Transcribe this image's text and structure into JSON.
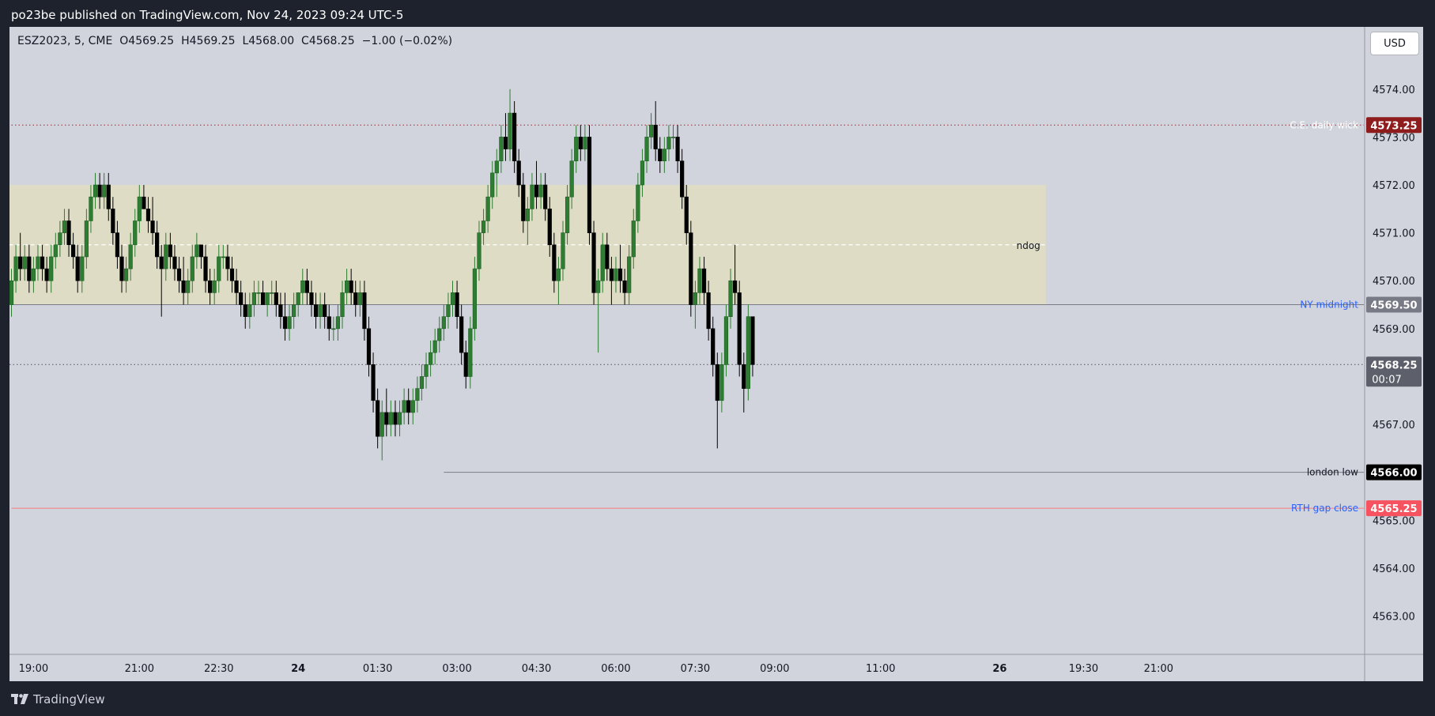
{
  "header": {
    "publish_line": "po23be published on TradingView.com, Nov 24, 2023 09:24 UTC-5"
  },
  "legend": {
    "symbol": "ESZ2023, 5, CME",
    "open": "O4569.25",
    "high": "H4569.25",
    "low": "L4568.00",
    "close": "C4568.25",
    "change": "−1.00 (−0.02%)"
  },
  "currency_button": "USD",
  "footer": {
    "brand": "TradingView"
  },
  "colors": {
    "up": "#26a69a",
    "up_fill": "#2e7d32",
    "down": "#000000",
    "zone": "#dedcc5",
    "background": "#d1d4dc"
  },
  "chart_data": {
    "type": "candlestick",
    "symbol": "ESZ2023",
    "interval": "5",
    "exchange": "CME",
    "ylim": [
      4562.2,
      4575.3
    ],
    "y_ticks": [
      4563,
      4564,
      4565,
      4566,
      4567,
      4568,
      4569,
      4570,
      4571,
      4572,
      4573,
      4574,
      4575
    ],
    "y_tick_labels": [
      "4563.00",
      "4564.00",
      "4565.00",
      "4566.00",
      "4567.00",
      "4568.00",
      "4569.00",
      "4570.00",
      "4571.00",
      "4572.00",
      "4573.00",
      "4574.00",
      "4575.00"
    ],
    "x_ticks": [
      {
        "label": "19:00",
        "bar": 5,
        "bold": false
      },
      {
        "label": "21:00",
        "bar": 29,
        "bold": false
      },
      {
        "label": "22:30",
        "bar": 47,
        "bold": false
      },
      {
        "label": "24",
        "bar": 65,
        "bold": true
      },
      {
        "label": "01:30",
        "bar": 83,
        "bold": false
      },
      {
        "label": "03:00",
        "bar": 101,
        "bold": false
      },
      {
        "label": "04:30",
        "bar": 119,
        "bold": false
      },
      {
        "label": "06:00",
        "bar": 137,
        "bold": false
      },
      {
        "label": "07:30",
        "bar": 155,
        "bold": false
      },
      {
        "label": "09:00",
        "bar": 173,
        "bold": false
      },
      {
        "label": "11:00",
        "bar": 197,
        "bold": false
      },
      {
        "label": "26",
        "bar": 224,
        "bold": true
      },
      {
        "label": "19:30",
        "bar": 243,
        "bold": false
      },
      {
        "label": "21:00",
        "bar": 260,
        "bold": false
      }
    ],
    "bars_visible": 275,
    "candles": [
      [
        4569.5,
        4570.25,
        4569.25,
        4570.0
      ],
      [
        4570.0,
        4570.75,
        4569.75,
        4570.5
      ],
      [
        4570.5,
        4571.0,
        4570.0,
        4570.25
      ],
      [
        4570.25,
        4570.75,
        4570.0,
        4570.5
      ],
      [
        4570.5,
        4570.75,
        4569.75,
        4570.0
      ],
      [
        4570.0,
        4570.5,
        4569.75,
        4570.25
      ],
      [
        4570.25,
        4570.75,
        4570.0,
        4570.5
      ],
      [
        4570.5,
        4570.75,
        4570.0,
        4570.25
      ],
      [
        4570.25,
        4570.5,
        4569.75,
        4570.0
      ],
      [
        4570.0,
        4570.75,
        4569.75,
        4570.5
      ],
      [
        4570.5,
        4571.0,
        4570.25,
        4570.75
      ],
      [
        4570.75,
        4571.25,
        4570.5,
        4571.0
      ],
      [
        4571.0,
        4571.5,
        4570.75,
        4571.25
      ],
      [
        4571.25,
        4571.5,
        4570.5,
        4570.75
      ],
      [
        4570.75,
        4571.0,
        4570.25,
        4570.5
      ],
      [
        4570.5,
        4570.75,
        4569.75,
        4570.0
      ],
      [
        4570.0,
        4570.75,
        4569.75,
        4570.5
      ],
      [
        4570.5,
        4571.5,
        4570.25,
        4571.25
      ],
      [
        4571.25,
        4572.0,
        4571.0,
        4571.75
      ],
      [
        4571.75,
        4572.25,
        4571.5,
        4572.0
      ],
      [
        4572.0,
        4572.25,
        4571.5,
        4571.75
      ],
      [
        4571.75,
        4572.25,
        4571.5,
        4572.0
      ],
      [
        4572.0,
        4572.25,
        4571.25,
        4571.5
      ],
      [
        4571.5,
        4571.75,
        4570.75,
        4571.0
      ],
      [
        4571.0,
        4571.25,
        4570.25,
        4570.5
      ],
      [
        4570.5,
        4570.75,
        4569.75,
        4570.0
      ],
      [
        4570.0,
        4570.5,
        4569.75,
        4570.25
      ],
      [
        4570.25,
        4571.0,
        4570.0,
        4570.75
      ],
      [
        4570.75,
        4571.5,
        4570.5,
        4571.25
      ],
      [
        4571.25,
        4572.0,
        4571.0,
        4571.75
      ],
      [
        4571.75,
        4572.0,
        4571.5,
        4571.5
      ],
      [
        4571.5,
        4571.75,
        4571.0,
        4571.25
      ],
      [
        4571.25,
        4571.75,
        4570.75,
        4571.0
      ],
      [
        4571.0,
        4571.25,
        4570.25,
        4570.5
      ],
      [
        4570.5,
        4570.75,
        4569.25,
        4570.25
      ],
      [
        4570.25,
        4571.0,
        4570.0,
        4570.75
      ],
      [
        4570.75,
        4571.0,
        4570.25,
        4570.5
      ],
      [
        4570.5,
        4570.75,
        4570.0,
        4570.25
      ],
      [
        4570.25,
        4570.5,
        4569.75,
        4570.0
      ],
      [
        4570.0,
        4570.5,
        4569.5,
        4569.75
      ],
      [
        4569.75,
        4570.25,
        4569.5,
        4570.0
      ],
      [
        4570.0,
        4570.75,
        4569.75,
        4570.5
      ],
      [
        4570.5,
        4571.0,
        4570.25,
        4570.75
      ],
      [
        4570.75,
        4570.75,
        4570.25,
        4570.5
      ],
      [
        4570.5,
        4570.75,
        4569.75,
        4570.0
      ],
      [
        4570.0,
        4570.25,
        4569.5,
        4569.75
      ],
      [
        4569.75,
        4570.25,
        4569.5,
        4570.0
      ],
      [
        4570.0,
        4570.75,
        4569.75,
        4570.5
      ],
      [
        4570.5,
        4570.75,
        4570.25,
        4570.5
      ],
      [
        4570.5,
        4570.75,
        4570.0,
        4570.25
      ],
      [
        4570.25,
        4570.5,
        4569.75,
        4570.0
      ],
      [
        4570.0,
        4570.25,
        4569.5,
        4569.75
      ],
      [
        4569.75,
        4570.0,
        4569.25,
        4569.5
      ],
      [
        4569.5,
        4569.75,
        4569.0,
        4569.25
      ],
      [
        4569.25,
        4569.75,
        4569.0,
        4569.5
      ],
      [
        4569.5,
        4570.0,
        4569.25,
        4569.75
      ],
      [
        4569.75,
        4570.0,
        4569.5,
        4569.75
      ],
      [
        4569.75,
        4570.0,
        4569.5,
        4569.5
      ],
      [
        4569.5,
        4569.75,
        4569.25,
        4569.75
      ],
      [
        4569.75,
        4570.0,
        4569.5,
        4569.75
      ],
      [
        4569.75,
        4570.0,
        4569.25,
        4569.5
      ],
      [
        4569.5,
        4569.75,
        4569.0,
        4569.25
      ],
      [
        4569.25,
        4569.75,
        4568.75,
        4569.0
      ],
      [
        4569.0,
        4569.5,
        4568.75,
        4569.25
      ],
      [
        4569.25,
        4569.75,
        4569.0,
        4569.5
      ],
      [
        4569.5,
        4569.75,
        4569.25,
        4569.75
      ],
      [
        4569.75,
        4570.25,
        4569.5,
        4570.0
      ],
      [
        4570.0,
        4570.25,
        4569.5,
        4569.75
      ],
      [
        4569.75,
        4570.0,
        4569.25,
        4569.5
      ],
      [
        4569.5,
        4569.75,
        4569.0,
        4569.25
      ],
      [
        4569.25,
        4569.75,
        4569.0,
        4569.5
      ],
      [
        4569.5,
        4569.75,
        4569.0,
        4569.25
      ],
      [
        4569.25,
        4569.5,
        4568.75,
        4569.0
      ],
      [
        4569.0,
        4569.25,
        4568.75,
        4569.0
      ],
      [
        4569.0,
        4569.5,
        4568.75,
        4569.25
      ],
      [
        4569.25,
        4570.0,
        4569.0,
        4569.75
      ],
      [
        4569.75,
        4570.25,
        4569.5,
        4570.0
      ],
      [
        4570.0,
        4570.25,
        4569.5,
        4569.75
      ],
      [
        4569.75,
        4570.0,
        4569.25,
        4569.5
      ],
      [
        4569.5,
        4570.0,
        4569.25,
        4569.75
      ],
      [
        4569.75,
        4570.0,
        4568.75,
        4569.0
      ],
      [
        4569.0,
        4569.25,
        4568.0,
        4568.25
      ],
      [
        4568.25,
        4568.5,
        4567.25,
        4567.5
      ],
      [
        4567.5,
        4567.75,
        4566.5,
        4566.75
      ],
      [
        4566.75,
        4567.5,
        4566.25,
        4567.25
      ],
      [
        4567.25,
        4567.75,
        4566.75,
        4567.0
      ],
      [
        4567.0,
        4567.5,
        4566.75,
        4567.25
      ],
      [
        4567.25,
        4567.5,
        4566.75,
        4567.0
      ],
      [
        4567.0,
        4567.5,
        4566.75,
        4567.25
      ],
      [
        4567.25,
        4567.75,
        4567.0,
        4567.5
      ],
      [
        4567.5,
        4567.75,
        4567.0,
        4567.25
      ],
      [
        4567.25,
        4567.75,
        4567.0,
        4567.5
      ],
      [
        4567.5,
        4568.0,
        4567.25,
        4567.75
      ],
      [
        4567.75,
        4568.25,
        4567.5,
        4568.0
      ],
      [
        4568.0,
        4568.5,
        4567.75,
        4568.25
      ],
      [
        4568.25,
        4568.75,
        4568.0,
        4568.5
      ],
      [
        4568.5,
        4569.0,
        4568.25,
        4568.75
      ],
      [
        4568.75,
        4569.25,
        4568.5,
        4569.0
      ],
      [
        4569.0,
        4569.5,
        4568.75,
        4569.25
      ],
      [
        4569.25,
        4569.75,
        4569.0,
        4569.5
      ],
      [
        4569.5,
        4570.0,
        4569.25,
        4569.75
      ],
      [
        4569.75,
        4570.0,
        4569.0,
        4569.25
      ],
      [
        4569.25,
        4569.5,
        4568.25,
        4568.5
      ],
      [
        4568.5,
        4568.75,
        4567.75,
        4568.0
      ],
      [
        4568.0,
        4569.25,
        4567.75,
        4569.0
      ],
      [
        4569.0,
        4570.5,
        4568.75,
        4570.25
      ],
      [
        4570.25,
        4571.25,
        4570.0,
        4571.0
      ],
      [
        4571.0,
        4571.5,
        4570.75,
        4571.25
      ],
      [
        4571.25,
        4572.0,
        4571.0,
        4571.75
      ],
      [
        4571.75,
        4572.5,
        4571.5,
        4572.25
      ],
      [
        4572.25,
        4572.75,
        4571.75,
        4572.5
      ],
      [
        4572.5,
        4573.25,
        4572.25,
        4573.0
      ],
      [
        4573.0,
        4573.5,
        4572.5,
        4572.75
      ],
      [
        4572.75,
        4574.0,
        4572.5,
        4573.5
      ],
      [
        4573.5,
        4573.75,
        4572.25,
        4572.5
      ],
      [
        4572.5,
        4572.75,
        4571.75,
        4572.0
      ],
      [
        4572.0,
        4572.25,
        4571.0,
        4571.25
      ],
      [
        4571.25,
        4571.75,
        4570.75,
        4571.5
      ],
      [
        4571.5,
        4572.25,
        4571.25,
        4572.0
      ],
      [
        4572.0,
        4572.5,
        4571.5,
        4571.75
      ],
      [
        4571.75,
        4572.25,
        4571.5,
        4572.0
      ],
      [
        4572.0,
        4572.25,
        4571.25,
        4571.5
      ],
      [
        4571.5,
        4571.75,
        4570.5,
        4570.75
      ],
      [
        4570.75,
        4571.0,
        4569.75,
        4570.0
      ],
      [
        4570.0,
        4570.5,
        4569.5,
        4570.25
      ],
      [
        4570.25,
        4571.25,
        4570.0,
        4571.0
      ],
      [
        4571.0,
        4572.0,
        4570.75,
        4571.75
      ],
      [
        4571.75,
        4572.75,
        4571.5,
        4572.5
      ],
      [
        4572.5,
        4573.25,
        4572.25,
        4573.0
      ],
      [
        4573.0,
        4573.25,
        4572.5,
        4572.75
      ],
      [
        4572.75,
        4573.25,
        4572.5,
        4573.0
      ],
      [
        4573.0,
        4573.25,
        4570.75,
        4571.0
      ],
      [
        4571.0,
        4571.25,
        4569.5,
        4569.75
      ],
      [
        4569.75,
        4570.25,
        4568.5,
        4570.0
      ],
      [
        4570.0,
        4571.0,
        4569.75,
        4570.75
      ],
      [
        4570.75,
        4571.0,
        4570.0,
        4570.25
      ],
      [
        4570.25,
        4570.5,
        4569.5,
        4570.0
      ],
      [
        4570.0,
        4570.5,
        4569.75,
        4570.25
      ],
      [
        4570.25,
        4570.75,
        4569.75,
        4570.0
      ],
      [
        4570.0,
        4570.25,
        4569.5,
        4569.75
      ],
      [
        4569.75,
        4570.75,
        4569.5,
        4570.5
      ],
      [
        4570.5,
        4571.5,
        4570.25,
        4571.25
      ],
      [
        4571.25,
        4572.25,
        4571.0,
        4572.0
      ],
      [
        4572.0,
        4572.75,
        4571.75,
        4572.5
      ],
      [
        4572.5,
        4573.25,
        4572.25,
        4573.0
      ],
      [
        4573.0,
        4573.5,
        4572.75,
        4573.25
      ],
      [
        4573.25,
        4573.75,
        4572.5,
        4572.75
      ],
      [
        4572.75,
        4573.0,
        4572.25,
        4572.5
      ],
      [
        4572.5,
        4573.0,
        4572.25,
        4572.75
      ],
      [
        4572.75,
        4573.25,
        4572.5,
        4573.0
      ],
      [
        4573.0,
        4573.25,
        4572.75,
        4573.0
      ],
      [
        4573.0,
        4573.25,
        4572.25,
        4572.5
      ],
      [
        4572.5,
        4572.75,
        4571.5,
        4571.75
      ],
      [
        4571.75,
        4572.0,
        4570.75,
        4571.0
      ],
      [
        4571.0,
        4571.25,
        4569.25,
        4569.5
      ],
      [
        4569.5,
        4570.0,
        4569.0,
        4569.75
      ],
      [
        4569.75,
        4570.5,
        4569.5,
        4570.25
      ],
      [
        4570.25,
        4570.5,
        4569.5,
        4569.75
      ],
      [
        4569.75,
        4570.0,
        4568.75,
        4569.0
      ],
      [
        4569.0,
        4569.25,
        4568.0,
        4568.25
      ],
      [
        4568.25,
        4568.5,
        4566.5,
        4567.5
      ],
      [
        4567.5,
        4568.5,
        4567.25,
        4568.25
      ],
      [
        4568.25,
        4569.5,
        4568.0,
        4569.25
      ],
      [
        4569.25,
        4570.25,
        4569.0,
        4570.0
      ],
      [
        4570.0,
        4570.75,
        4569.5,
        4569.75
      ],
      [
        4569.75,
        4570.0,
        4568.0,
        4568.25
      ],
      [
        4568.25,
        4568.5,
        4567.25,
        4567.75
      ],
      [
        4567.75,
        4569.5,
        4567.5,
        4569.25
      ],
      [
        4569.25,
        4569.25,
        4568.0,
        4568.25
      ]
    ],
    "annotations": [
      {
        "type": "zone",
        "label": "ndog",
        "from_bar": 0,
        "to_bar": 235,
        "low": 4569.5,
        "high": 4572.0,
        "mid": 4570.75
      },
      {
        "type": "level",
        "label": "C.E. daily wick",
        "price": 4573.25,
        "tag": "4573.25",
        "from_bar": 0,
        "style": "dotted"
      },
      {
        "type": "level",
        "label": "NY midnight",
        "price": 4569.5,
        "tag": "4569.50",
        "from_bar": 0,
        "style": "solid"
      },
      {
        "type": "level",
        "label": "london low",
        "price": 4566.0,
        "tag": "4566.00",
        "from_bar": 98,
        "style": "solid"
      },
      {
        "type": "level",
        "label": "RTH gap close",
        "price": 4565.25,
        "tag": "4565.25",
        "from_bar": 0,
        "style": "solid"
      }
    ],
    "last_price": {
      "price": 4568.25,
      "label": "4568.25",
      "countdown": "00:07"
    }
  }
}
